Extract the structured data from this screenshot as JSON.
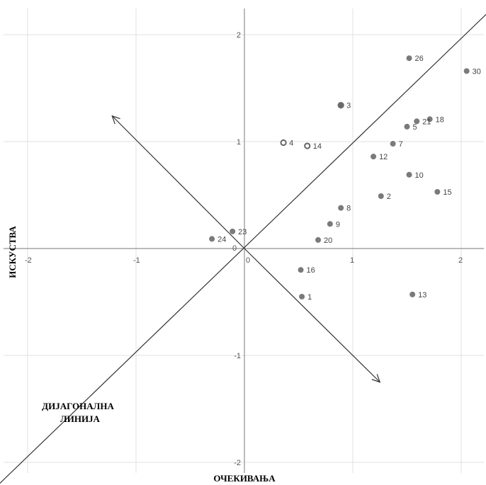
{
  "chart_data": {
    "type": "scatter",
    "xlabel": "ОЧЕКИВАЊА",
    "ylabel": "ИСКУСТВА",
    "diagonal_label": [
      "ДИЈАГОНАЛНА",
      "ЛИНИЈА"
    ],
    "xlim": [
      -2.2,
      2.2
    ],
    "ylim": [
      -2.2,
      2.2
    ],
    "x_ticks": [
      -2,
      -1,
      0,
      1,
      2
    ],
    "y_ticks": [
      -2,
      -1,
      0,
      1,
      2
    ],
    "grid": true,
    "points": [
      {
        "label": "1",
        "x": 0.53,
        "y": -0.45
      },
      {
        "label": "2",
        "x": 1.26,
        "y": 0.49
      },
      {
        "label": "3",
        "x": 0.89,
        "y": 1.34,
        "style": "large"
      },
      {
        "label": "4",
        "x": 0.36,
        "y": 0.99,
        "style": "hollow"
      },
      {
        "label": "5",
        "x": 1.5,
        "y": 1.14
      },
      {
        "label": "7",
        "x": 1.37,
        "y": 0.98
      },
      {
        "label": "8",
        "x": 0.89,
        "y": 0.38
      },
      {
        "label": "9",
        "x": 0.79,
        "y": 0.23
      },
      {
        "label": "10",
        "x": 1.52,
        "y": 0.69
      },
      {
        "label": "12",
        "x": 1.19,
        "y": 0.86
      },
      {
        "label": "13",
        "x": 1.55,
        "y": -0.43
      },
      {
        "label": "14",
        "x": 0.58,
        "y": 0.96,
        "style": "hollow"
      },
      {
        "label": "15",
        "x": 1.78,
        "y": 0.53
      },
      {
        "label": "16",
        "x": 0.52,
        "y": -0.2
      },
      {
        "label": "18",
        "x": 1.71,
        "y": 1.21
      },
      {
        "label": "20",
        "x": 0.68,
        "y": 0.08
      },
      {
        "label": "21",
        "x": 1.59,
        "y": 1.19
      },
      {
        "label": "23",
        "x": -0.11,
        "y": 0.16
      },
      {
        "label": "24",
        "x": -0.3,
        "y": 0.09
      },
      {
        "label": "26",
        "x": 1.52,
        "y": 1.78
      },
      {
        "label": "30",
        "x": 2.05,
        "y": 1.66
      }
    ],
    "arrows": [
      {
        "from": [
          0,
          0
        ],
        "to": [
          -1.22,
          1.24
        ]
      },
      {
        "from": [
          0,
          0
        ],
        "to": [
          1.25,
          -1.25
        ]
      }
    ],
    "diagonal": {
      "from": [
        -2.26,
        -2.2
      ],
      "to": [
        2.24,
        2.2
      ]
    }
  }
}
